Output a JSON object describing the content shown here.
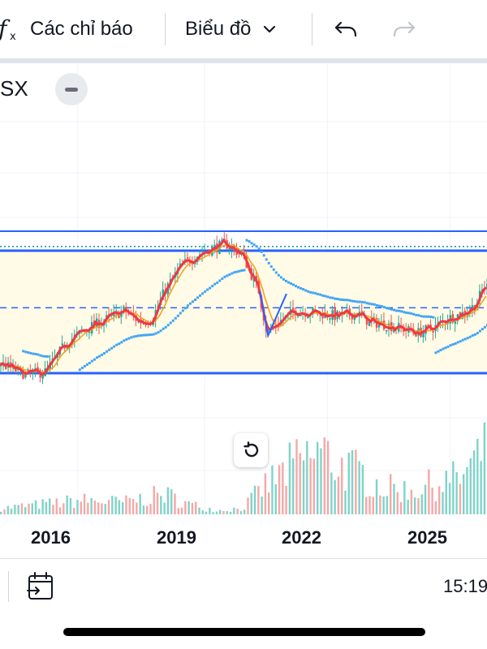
{
  "toolbar": {
    "indicators_label": "Các chỉ báo",
    "chart_type_label": "Biểu đồ",
    "icons": [
      "fx-icon",
      "chevron-down-icon",
      "undo-icon",
      "redo-icon"
    ]
  },
  "legend": {
    "symbol": "SX"
  },
  "chart_data": {
    "type": "candlestick",
    "x_ticks": [
      "2016",
      "2019",
      "2022",
      "2025"
    ],
    "y_axis": "hidden",
    "price_path": [
      [
        2014.0,
        0.3
      ],
      [
        2014.6,
        0.22
      ],
      [
        2015.1,
        0.24
      ],
      [
        2015.6,
        0.45
      ],
      [
        2016.1,
        0.55
      ],
      [
        2016.6,
        0.62
      ],
      [
        2017.0,
        0.68
      ],
      [
        2017.4,
        0.6
      ],
      [
        2017.7,
        0.62
      ],
      [
        2018.0,
        0.82
      ],
      [
        2018.4,
        1.0
      ],
      [
        2018.8,
        1.08
      ],
      [
        2019.1,
        1.12
      ],
      [
        2019.5,
        1.16
      ],
      [
        2019.9,
        1.08
      ],
      [
        2020.3,
        0.82
      ],
      [
        2020.5,
        0.52
      ],
      [
        2020.8,
        0.6
      ],
      [
        2021.2,
        0.68
      ],
      [
        2021.8,
        0.66
      ],
      [
        2022.2,
        0.64
      ],
      [
        2022.7,
        0.66
      ],
      [
        2023.0,
        0.6
      ],
      [
        2023.4,
        0.58
      ],
      [
        2023.8,
        0.55
      ],
      [
        2024.2,
        0.52
      ],
      [
        2024.6,
        0.56
      ],
      [
        2024.9,
        0.62
      ],
      [
        2025.3,
        0.66
      ],
      [
        2025.6,
        0.72
      ],
      [
        2025.8,
        0.85
      ]
    ],
    "levels": {
      "channel_top": 1.25,
      "dotted_line": 1.14,
      "resistance": 1.11,
      "dashed_mid": 0.7,
      "channel_bottom": 0.23
    },
    "volume_profile": [
      [
        2014.0,
        0.06
      ],
      [
        2015.0,
        0.1
      ],
      [
        2016.0,
        0.14
      ],
      [
        2017.0,
        0.12
      ],
      [
        2018.0,
        0.2
      ],
      [
        2018.6,
        0.1
      ],
      [
        2019.3,
        0.04
      ],
      [
        2019.9,
        0.06
      ],
      [
        2020.5,
        0.3
      ],
      [
        2021.2,
        0.5
      ],
      [
        2021.8,
        0.62
      ],
      [
        2022.3,
        0.48
      ],
      [
        2022.8,
        0.4
      ],
      [
        2023.4,
        0.26
      ],
      [
        2024.0,
        0.24
      ],
      [
        2024.6,
        0.3
      ],
      [
        2025.2,
        0.36
      ],
      [
        2025.8,
        0.6
      ]
    ],
    "colors": {
      "up": "#26a69a",
      "down": "#ef5350",
      "ma_fast": "#f23645",
      "ma_slow": "#f7a21b",
      "sar": "#42a5f5",
      "channel": "#2962ff",
      "band_fill": "#fffbe6",
      "dotted": "#089981"
    }
  },
  "reset_button": {
    "icon": "reset-icon"
  },
  "bottom_bar": {
    "time": "15:19",
    "icons": [
      "calendar-goto-icon"
    ]
  }
}
